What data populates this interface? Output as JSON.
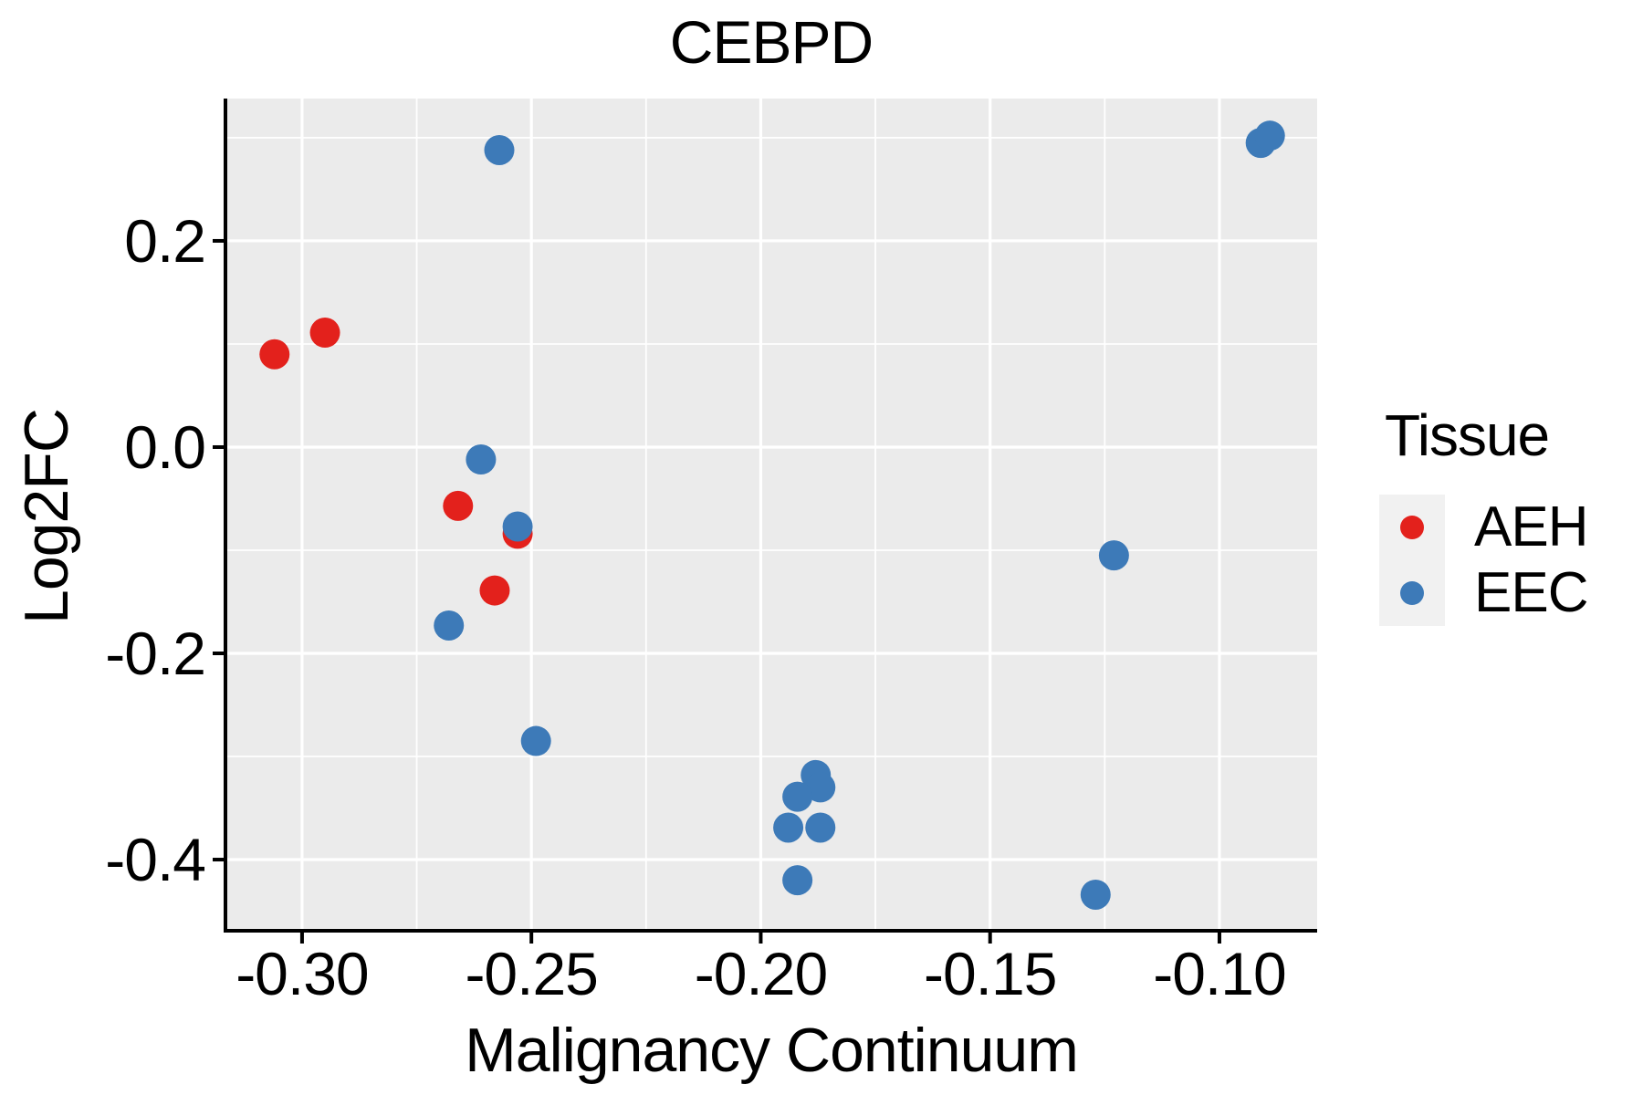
{
  "figure": {
    "title": "CEBPD",
    "background": "#FFFFFF",
    "panel_bg": "#EBEBEB",
    "grid_color": "#FFFFFF",
    "axis_color": "#000000",
    "text_color": "#000000"
  },
  "legend": {
    "title": "Tissue",
    "key_bg": "#F1F1F1",
    "entries": [
      {
        "label": "AEH",
        "color": "#E3211C"
      },
      {
        "label": "EEC",
        "color": "#3D7AB8"
      }
    ]
  },
  "chart_data": {
    "type": "scatter",
    "title": "CEBPD",
    "xlabel": "Malignancy Continuum",
    "ylabel": "Log2FC",
    "xlim": [
      -0.3167,
      -0.0787
    ],
    "ylim": [
      -0.469,
      0.338
    ],
    "grid": true,
    "legend_position": "right",
    "legend_title": "Tissue",
    "xticks": {
      "values": [
        -0.3,
        -0.25,
        -0.2,
        -0.15,
        -0.1
      ],
      "labels": [
        "-0.30",
        "-0.25",
        "-0.20",
        "-0.15",
        "-0.10"
      ]
    },
    "yticks": {
      "values": [
        0.2,
        0.0,
        -0.2,
        -0.4
      ],
      "labels": [
        "0.2",
        "0.0",
        "-0.2",
        "-0.4"
      ]
    },
    "minor_xticks": [
      -0.275,
      -0.225,
      -0.175,
      -0.125
    ],
    "minor_yticks": [
      0.3,
      0.1,
      -0.1,
      -0.3
    ],
    "marker_radius_px": 16.5,
    "series": [
      {
        "name": "AEH",
        "color": "#E3211C",
        "points": [
          [
            -0.306,
            0.09
          ],
          [
            -0.295,
            0.111
          ],
          [
            -0.266,
            -0.057
          ],
          [
            -0.253,
            -0.084
          ],
          [
            -0.258,
            -0.139
          ]
        ]
      },
      {
        "name": "EEC",
        "color": "#3D7AB8",
        "points": [
          [
            -0.257,
            0.288
          ],
          [
            -0.261,
            -0.012
          ],
          [
            -0.253,
            -0.077
          ],
          [
            -0.268,
            -0.173
          ],
          [
            -0.249,
            -0.285
          ],
          [
            -0.188,
            -0.318
          ],
          [
            -0.187,
            -0.33
          ],
          [
            -0.192,
            -0.339
          ],
          [
            -0.194,
            -0.369
          ],
          [
            -0.187,
            -0.369
          ],
          [
            -0.192,
            -0.42
          ],
          [
            -0.123,
            -0.105
          ],
          [
            -0.091,
            0.295
          ],
          [
            -0.089,
            0.302
          ],
          [
            -0.127,
            -0.434
          ]
        ]
      }
    ]
  }
}
